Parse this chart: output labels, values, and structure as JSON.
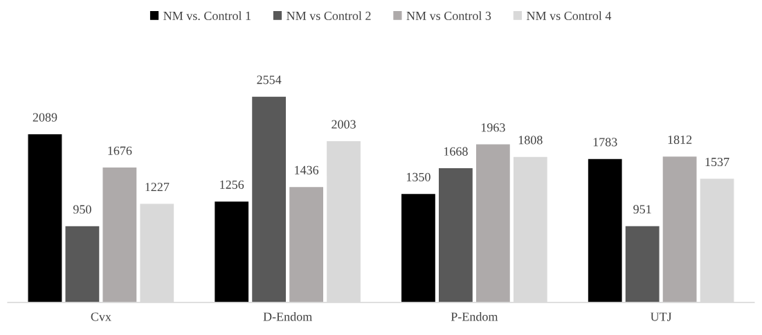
{
  "chart_data": {
    "type": "bar",
    "categories": [
      "Cvx",
      "D-Endom",
      "P-Endom",
      "UTJ"
    ],
    "series": [
      {
        "name": "NM vs. Control 1",
        "color": "#000000",
        "values": [
          2089,
          1256,
          1350,
          1783
        ]
      },
      {
        "name": "NM vs Control 2",
        "color": "#595959",
        "values": [
          950,
          2554,
          1668,
          951
        ]
      },
      {
        "name": "NM vs Control 3",
        "color": "#aeaaaa",
        "values": [
          1676,
          1436,
          1963,
          1812
        ]
      },
      {
        "name": "NM vs Control 4",
        "color": "#d9d9d9",
        "values": [
          1227,
          2003,
          1808,
          1537
        ]
      }
    ],
    "data_labels": true,
    "legend": "top",
    "grid": false
  }
}
